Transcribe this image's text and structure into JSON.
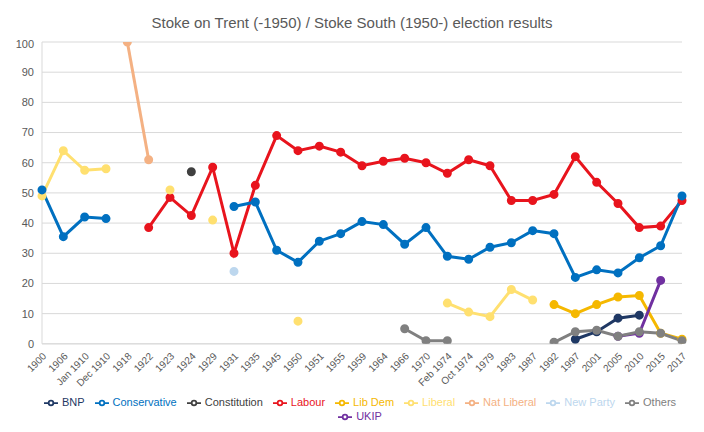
{
  "chart_data": {
    "type": "line",
    "title": "Stoke on Trent (-1950) / Stoke South (1950-) election results",
    "categories": [
      "1900",
      "1906",
      "Jan 1910",
      "Dec 1910",
      "1918",
      "1922",
      "1923",
      "1924",
      "1929",
      "1931",
      "1935",
      "1945",
      "1950",
      "1951",
      "1955",
      "1959",
      "1964",
      "1966",
      "1970",
      "Feb 1974",
      "Oct 1974",
      "1979",
      "1983",
      "1987",
      "1992",
      "1997",
      "2001",
      "2005",
      "2010",
      "2015",
      "2017"
    ],
    "series": [
      {
        "name": "Labour",
        "color": "#e8141d",
        "values": [
          null,
          null,
          null,
          null,
          null,
          38.5,
          48.5,
          42.5,
          58.5,
          30,
          52.5,
          69,
          64,
          65.5,
          63.5,
          59,
          60.5,
          61.5,
          60,
          56.5,
          61,
          59,
          47.5,
          47.5,
          49.5,
          62,
          53.5,
          46.5,
          38.5,
          39,
          47.5
        ]
      },
      {
        "name": "Lib Dem",
        "color": "#f5b800",
        "values": [
          null,
          null,
          null,
          null,
          null,
          null,
          null,
          null,
          null,
          null,
          null,
          null,
          null,
          null,
          null,
          null,
          null,
          null,
          null,
          null,
          null,
          null,
          null,
          null,
          13,
          10,
          13,
          15.5,
          16,
          3.5,
          1.5
        ]
      },
      {
        "name": "Liberal",
        "color": "#ffe070",
        "values": [
          49,
          64,
          57.5,
          58,
          null,
          null,
          51,
          null,
          41,
          null,
          null,
          null,
          7.5,
          null,
          null,
          null,
          null,
          null,
          null,
          13.5,
          10.5,
          9,
          18,
          14.5,
          null,
          null,
          null,
          null,
          null,
          null,
          null
        ]
      },
      {
        "name": "Nat Liberal",
        "color": "#f4b183",
        "values": [
          null,
          null,
          null,
          null,
          100,
          61,
          null,
          null,
          null,
          null,
          null,
          null,
          null,
          null,
          null,
          null,
          null,
          null,
          null,
          null,
          null,
          null,
          null,
          null,
          null,
          null,
          null,
          null,
          null,
          null,
          null
        ]
      },
      {
        "name": "Constitution",
        "color": "#404040",
        "values": [
          null,
          null,
          null,
          null,
          null,
          null,
          null,
          57,
          null,
          null,
          null,
          null,
          null,
          null,
          null,
          null,
          null,
          null,
          null,
          null,
          null,
          null,
          null,
          null,
          null,
          null,
          null,
          null,
          null,
          null,
          null
        ]
      },
      {
        "name": "BNP",
        "color": "#1f3864",
        "values": [
          null,
          null,
          null,
          null,
          null,
          null,
          null,
          null,
          null,
          null,
          null,
          null,
          null,
          null,
          null,
          null,
          null,
          null,
          null,
          null,
          null,
          null,
          null,
          null,
          null,
          1.5,
          4,
          8.5,
          9.5,
          null,
          null
        ]
      },
      {
        "name": "New Party",
        "color": "#bdd7ee",
        "values": [
          null,
          null,
          null,
          null,
          null,
          null,
          null,
          null,
          null,
          24,
          null,
          null,
          null,
          null,
          null,
          null,
          null,
          null,
          null,
          null,
          null,
          null,
          null,
          null,
          null,
          null,
          null,
          null,
          null,
          null,
          null
        ]
      },
      {
        "name": "Conservative",
        "color": "#0070c0",
        "values": [
          51,
          35.5,
          42,
          41.5,
          null,
          null,
          null,
          null,
          null,
          45.5,
          47,
          31,
          27,
          34,
          36.5,
          40.5,
          39.5,
          33,
          38.5,
          29,
          28,
          32,
          33.5,
          37.5,
          36.5,
          22,
          24.5,
          23.5,
          28.5,
          32.5,
          49
        ]
      },
      {
        "name": "UKIP",
        "color": "#7030a0",
        "values": [
          null,
          null,
          null,
          null,
          null,
          null,
          null,
          null,
          null,
          null,
          null,
          null,
          null,
          null,
          null,
          null,
          null,
          null,
          null,
          null,
          null,
          null,
          null,
          null,
          null,
          null,
          null,
          2.5,
          3.5,
          21,
          null
        ]
      },
      {
        "name": "Others",
        "color": "#808080",
        "values": [
          null,
          null,
          null,
          null,
          null,
          null,
          null,
          null,
          null,
          null,
          null,
          null,
          null,
          null,
          null,
          null,
          null,
          5,
          1,
          1,
          null,
          null,
          null,
          null,
          0.5,
          4,
          4.5,
          2.5,
          4,
          3.5,
          1
        ]
      }
    ],
    "ylim": [
      0,
      100
    ],
    "yticks": [
      0,
      10,
      20,
      30,
      40,
      50,
      60,
      70,
      80,
      90,
      100
    ],
    "grid": true,
    "legend": "bottom",
    "marker": "circle"
  }
}
